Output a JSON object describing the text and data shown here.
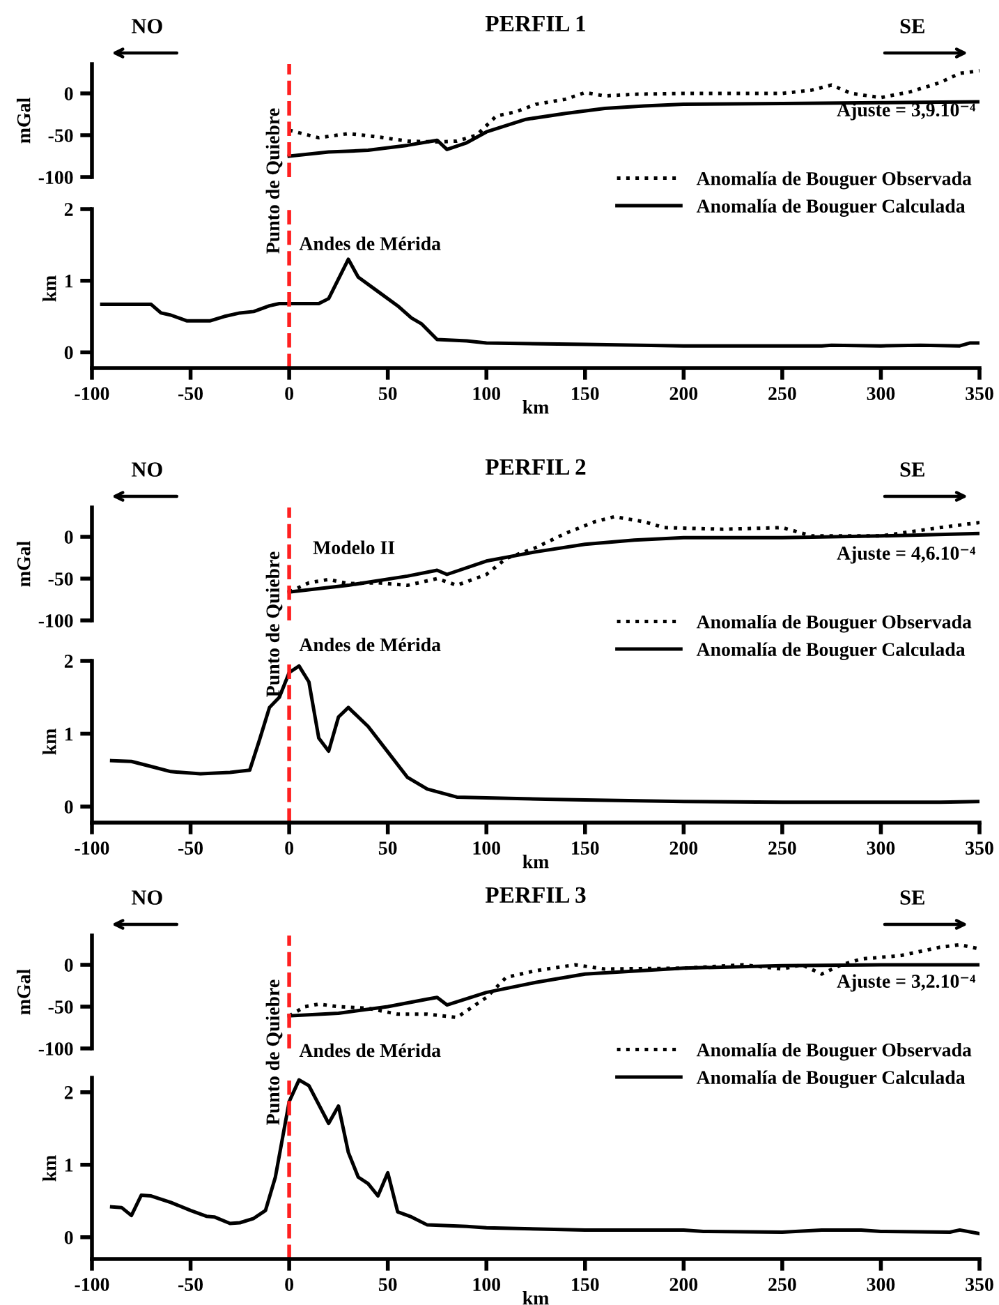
{
  "chart_data": [
    {
      "type": "line",
      "title": "PERFIL 1",
      "ylabel": "mGal",
      "xlim": [
        -100,
        350
      ],
      "ylim": [
        -100,
        35
      ],
      "yticks": [
        -100,
        -50,
        0
      ],
      "tick_labels": "y",
      "legend": "bottom right",
      "series": [
        {
          "name": "Anomalía de Bouguer Observada",
          "color": "#000000",
          "line_style": "dotted",
          "x": [
            0,
            15,
            30,
            45,
            60,
            75,
            85,
            95,
            105,
            115,
            125,
            140,
            150,
            160,
            175,
            200,
            250,
            265,
            275,
            285,
            300,
            315,
            330,
            340,
            350
          ],
          "values": [
            -44,
            -53,
            -48,
            -52,
            -57,
            -58,
            -57,
            -50,
            -27,
            -22,
            -13,
            -7,
            1,
            -3,
            -1,
            0,
            0,
            4,
            10,
            0,
            -5,
            2,
            13,
            24,
            27
          ]
        },
        {
          "name": "Anomalía de Bouguer Calculada",
          "color": "#000000",
          "line_style": "solid",
          "x": [
            0,
            20,
            40,
            60,
            75,
            80,
            90,
            100,
            120,
            140,
            160,
            180,
            200,
            250,
            300,
            350
          ],
          "values": [
            -75,
            -70,
            -68,
            -62,
            -56,
            -67,
            -59,
            -46,
            -31,
            -24,
            -18,
            -15,
            -13,
            -12,
            -11,
            -10
          ]
        }
      ],
      "annotations": [
        "NO",
        "SE",
        "Ajuste = 3,9.10⁻⁴"
      ],
      "ref_lines": [
        {
          "axis": "x",
          "value": 0,
          "label": "Punto de Quiebre",
          "color": "#ff2020",
          "line_style": "dashed"
        }
      ]
    },
    {
      "type": "line",
      "xlabel": "km",
      "ylabel": "km",
      "xlim": [
        -100,
        350
      ],
      "ylim": [
        -0.22,
        2.0
      ],
      "xticks": [
        -100,
        -50,
        0,
        50,
        100,
        150,
        200,
        250,
        300,
        350
      ],
      "yticks": [
        0,
        1,
        2
      ],
      "series": [
        {
          "color": "#000000",
          "line_style": "solid",
          "x": [
            -95,
            -70,
            -65,
            -60,
            -52,
            -40,
            -33,
            -25,
            -18,
            -10,
            -5,
            0,
            15,
            20,
            30,
            35,
            45,
            55,
            62,
            67,
            75,
            90,
            100,
            150,
            200,
            270,
            275,
            300,
            320,
            340,
            345,
            350
          ],
          "values": [
            0.67,
            0.67,
            0.55,
            0.52,
            0.44,
            0.44,
            0.5,
            0.55,
            0.57,
            0.65,
            0.68,
            0.68,
            0.68,
            0.75,
            1.3,
            1.05,
            0.85,
            0.65,
            0.48,
            0.4,
            0.18,
            0.16,
            0.13,
            0.11,
            0.09,
            0.09,
            0.1,
            0.09,
            0.1,
            0.09,
            0.13,
            0.13
          ]
        }
      ],
      "annotations": [
        "Andes de Mérida"
      ],
      "ref_lines": [
        {
          "axis": "x",
          "value": 0,
          "color": "#ff2020",
          "line_style": "dashed"
        }
      ]
    },
    {
      "type": "line",
      "title": "PERFIL 2",
      "ylabel": "mGal",
      "xlim": [
        -100,
        350
      ],
      "ylim": [
        -100,
        35
      ],
      "yticks": [
        -100,
        -50,
        0
      ],
      "tick_labels": "y",
      "legend": "bottom right",
      "series": [
        {
          "name": "Anomalía de Bouguer Observada",
          "color": "#000000",
          "line_style": "dotted",
          "x": [
            0,
            10,
            20,
            30,
            45,
            60,
            75,
            85,
            100,
            110,
            125,
            140,
            155,
            165,
            180,
            190,
            220,
            250,
            265,
            300,
            330,
            350
          ],
          "values": [
            -66,
            -55,
            -51,
            -56,
            -55,
            -58,
            -50,
            -58,
            -45,
            -26,
            -13,
            4,
            18,
            24,
            18,
            11,
            9,
            11,
            1,
            1,
            11,
            17
          ]
        },
        {
          "name": "Anomalía de Bouguer Calculada",
          "color": "#000000",
          "line_style": "solid",
          "x": [
            0,
            30,
            60,
            75,
            80,
            100,
            125,
            150,
            175,
            200,
            250,
            300,
            350
          ],
          "values": [
            -66,
            -58,
            -47,
            -40,
            -45,
            -29,
            -18,
            -9,
            -4,
            -1,
            -1,
            1,
            4
          ]
        }
      ],
      "annotations": [
        "NO",
        "SE",
        "Ajuste = 4,6.10⁻⁴",
        "Modelo II"
      ],
      "ref_lines": [
        {
          "axis": "x",
          "value": 0,
          "label": "Punto de Quiebre",
          "color": "#ff2020",
          "line_style": "dashed"
        }
      ]
    },
    {
      "type": "line",
      "xlabel": "km",
      "ylabel": "km",
      "xlim": [
        -100,
        350
      ],
      "ylim": [
        -0.22,
        2.0
      ],
      "xticks": [
        -100,
        -50,
        0,
        50,
        100,
        150,
        200,
        250,
        300,
        350
      ],
      "yticks": [
        0,
        1,
        2
      ],
      "series": [
        {
          "color": "#000000",
          "line_style": "solid",
          "x": [
            -90,
            -80,
            -70,
            -60,
            -45,
            -30,
            -20,
            -15,
            -10,
            -5,
            0,
            5,
            10,
            15,
            20,
            25,
            30,
            40,
            50,
            60,
            70,
            85,
            100,
            130,
            150,
            200,
            250,
            330,
            350
          ],
          "values": [
            0.63,
            0.62,
            0.55,
            0.48,
            0.45,
            0.47,
            0.5,
            0.92,
            1.36,
            1.5,
            1.84,
            1.93,
            1.71,
            0.94,
            0.76,
            1.23,
            1.36,
            1.1,
            0.75,
            0.4,
            0.24,
            0.13,
            0.12,
            0.1,
            0.09,
            0.07,
            0.06,
            0.06,
            0.07
          ]
        }
      ],
      "annotations": [
        "Andes de Mérida"
      ],
      "ref_lines": [
        {
          "axis": "x",
          "value": 0,
          "color": "#ff2020",
          "line_style": "dashed"
        }
      ]
    },
    {
      "type": "line",
      "title": "PERFIL 3",
      "ylabel": "mGal",
      "xlim": [
        -100,
        350
      ],
      "ylim": [
        -100,
        35
      ],
      "yticks": [
        -100,
        -50,
        0
      ],
      "tick_labels": "y",
      "legend": "bottom right",
      "series": [
        {
          "name": "Anomalía de Bouguer Observada",
          "color": "#000000",
          "line_style": "dotted",
          "x": [
            0,
            8,
            15,
            25,
            40,
            55,
            70,
            85,
            100,
            110,
            125,
            145,
            160,
            200,
            230,
            250,
            260,
            270,
            280,
            290,
            310,
            330,
            340,
            350
          ],
          "values": [
            -61,
            -50,
            -47,
            -50,
            -52,
            -59,
            -59,
            -63,
            -39,
            -15,
            -7,
            0,
            -5,
            -4,
            0,
            -5,
            0,
            -11,
            0,
            7,
            11,
            21,
            24,
            19
          ]
        },
        {
          "name": "Anomalía de Bouguer Calculada",
          "color": "#000000",
          "line_style": "solid",
          "x": [
            0,
            25,
            50,
            70,
            75,
            80,
            100,
            125,
            150,
            200,
            250,
            300,
            350
          ],
          "values": [
            -61,
            -58,
            -50,
            -41,
            -39,
            -48,
            -33,
            -21,
            -11,
            -4,
            -1,
            0,
            0
          ]
        }
      ],
      "annotations": [
        "NO",
        "SE",
        "Ajuste = 3,2.10⁻⁴"
      ],
      "ref_lines": [
        {
          "axis": "x",
          "value": 0,
          "label": "Punto de Quiebre",
          "color": "#ff2020",
          "line_style": "dashed"
        }
      ]
    },
    {
      "type": "line",
      "xlabel": "km",
      "ylabel": "km",
      "xlim": [
        -100,
        350
      ],
      "ylim": [
        -0.3,
        2.2
      ],
      "xticks": [
        -100,
        -50,
        0,
        50,
        100,
        150,
        200,
        250,
        300,
        350
      ],
      "yticks": [
        0,
        1,
        2
      ],
      "series": [
        {
          "color": "#000000",
          "line_style": "solid",
          "x": [
            -90,
            -85,
            -80,
            -75,
            -70,
            -60,
            -50,
            -42,
            -38,
            -30,
            -25,
            -18,
            -12,
            -7,
            0,
            5,
            10,
            20,
            25,
            30,
            35,
            40,
            45,
            50,
            55,
            62,
            70,
            90,
            100,
            150,
            200,
            210,
            250,
            270,
            290,
            300,
            335,
            340,
            350
          ],
          "values": [
            0.42,
            0.41,
            0.3,
            0.58,
            0.57,
            0.48,
            0.37,
            0.29,
            0.28,
            0.19,
            0.2,
            0.26,
            0.37,
            0.83,
            1.87,
            2.17,
            2.09,
            1.57,
            1.81,
            1.17,
            0.83,
            0.74,
            0.57,
            0.89,
            0.35,
            0.28,
            0.17,
            0.15,
            0.13,
            0.1,
            0.1,
            0.08,
            0.07,
            0.1,
            0.1,
            0.08,
            0.07,
            0.1,
            0.05
          ]
        }
      ],
      "annotations": [
        "Andes de Mérida"
      ],
      "ref_lines": [
        {
          "axis": "x",
          "value": 0,
          "color": "#ff2020",
          "line_style": "dashed"
        }
      ]
    }
  ]
}
